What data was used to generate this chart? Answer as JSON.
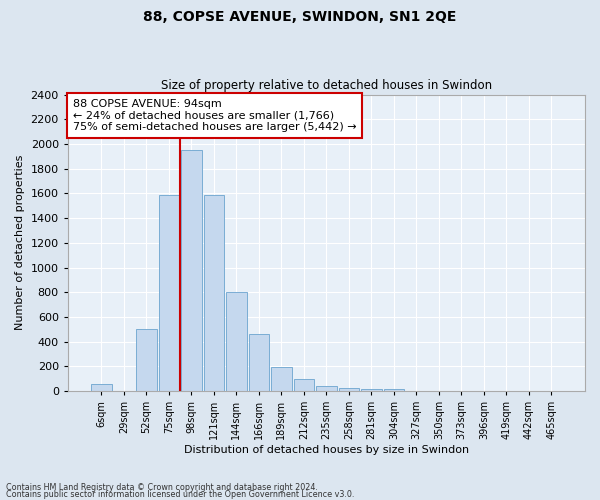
{
  "title": "88, COPSE AVENUE, SWINDON, SN1 2QE",
  "subtitle": "Size of property relative to detached houses in Swindon",
  "xlabel": "Distribution of detached houses by size in Swindon",
  "ylabel": "Number of detached properties",
  "categories": [
    "6sqm",
    "29sqm",
    "52sqm",
    "75sqm",
    "98sqm",
    "121sqm",
    "144sqm",
    "166sqm",
    "189sqm",
    "212sqm",
    "235sqm",
    "258sqm",
    "281sqm",
    "304sqm",
    "327sqm",
    "350sqm",
    "373sqm",
    "396sqm",
    "419sqm",
    "442sqm",
    "465sqm"
  ],
  "values": [
    60,
    0,
    500,
    1590,
    1950,
    1590,
    800,
    465,
    195,
    95,
    38,
    28,
    20,
    18,
    0,
    0,
    0,
    0,
    0,
    0,
    0
  ],
  "bar_color": "#c5d8ee",
  "bar_edge_color": "#7aadd4",
  "vline_color": "#cc0000",
  "annotation_text": "88 COPSE AVENUE: 94sqm\n← 24% of detached houses are smaller (1,766)\n75% of semi-detached houses are larger (5,442) →",
  "annotation_box_color": "#ffffff",
  "annotation_box_edge_color": "#cc0000",
  "ylim": [
    0,
    2400
  ],
  "yticks": [
    0,
    200,
    400,
    600,
    800,
    1000,
    1200,
    1400,
    1600,
    1800,
    2000,
    2200,
    2400
  ],
  "footer_line1": "Contains HM Land Registry data © Crown copyright and database right 2024.",
  "footer_line2": "Contains public sector information licensed under the Open Government Licence v3.0.",
  "bg_color": "#dce6f0",
  "plot_bg_color": "#e8f0f8",
  "vline_index": 3.5
}
